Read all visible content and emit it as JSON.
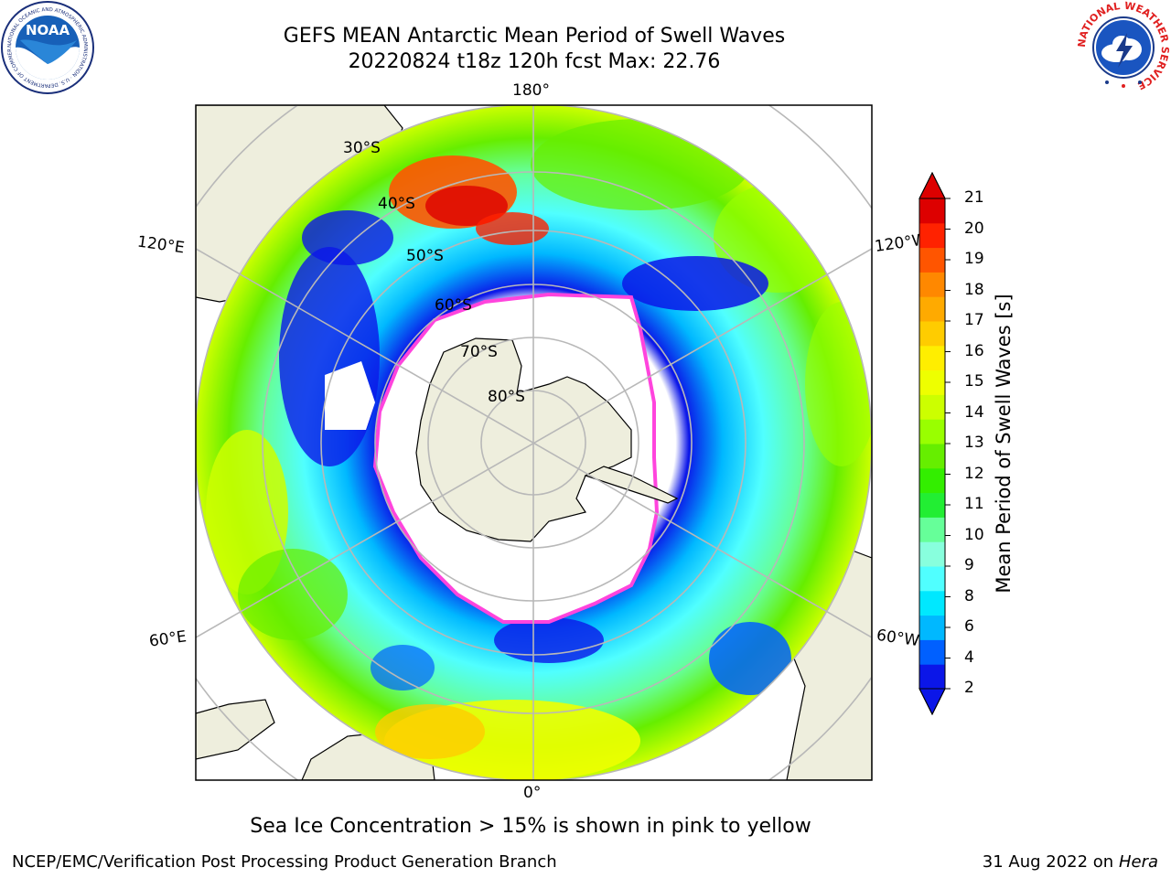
{
  "header": {
    "title_line1": "GEFS MEAN Antarctic Mean Period of Swell Waves",
    "title_line2": "20220824 t18z 120h fcst   Max: 22.76"
  },
  "logos": {
    "left": {
      "name": "noaa-logo",
      "text": "NOAA",
      "ring_text": "NATIONAL OCEANIC AND ATMOSPHERIC ADMINISTRATION · U.S. DEPARTMENT OF COMMERCE"
    },
    "right": {
      "name": "nws-logo",
      "ring_text": "NATIONAL WEATHER SERVICE"
    }
  },
  "map": {
    "projection": "south polar stereographic",
    "longitude_labels": {
      "top": "180°",
      "bottom": "0°",
      "upper_left": "120°E",
      "upper_right": "120°W",
      "lower_left": "60°E",
      "lower_right": "60°W"
    },
    "latitude_labels": [
      "30°S",
      "40°S",
      "50°S",
      "60°S",
      "70°S",
      "80°S"
    ],
    "colors": {
      "land": "#eeeedd",
      "ice_edge": "#ff44dd",
      "graticule": "#b8b8b8"
    }
  },
  "colorbar": {
    "label": "Mean Period of Swell Waves [s]",
    "ticks": [
      "21",
      "20",
      "19",
      "18",
      "17",
      "16",
      "15",
      "14",
      "13",
      "12",
      "11",
      "10",
      "9",
      "8",
      "6",
      "4",
      "2"
    ],
    "colors_bottom_to_top": [
      "#0b16e8",
      "#0060ff",
      "#00b8ff",
      "#00e8ff",
      "#50ffff",
      "#88ffdd",
      "#66ff99",
      "#22ee33",
      "#33ee00",
      "#66ee00",
      "#99ff00",
      "#ccff00",
      "#eeff00",
      "#ffee00",
      "#ffcc00",
      "#ffaa00",
      "#ff8800",
      "#ff5500",
      "#ff2200",
      "#dd0000"
    ],
    "extend_bottom_color": "#0b16e8",
    "extend_top_color": "#dd0000"
  },
  "footer": {
    "note": "Sea Ice Concentration > 15% is shown in pink to yellow",
    "credit": "NCEP/EMC/Verification Post Processing Product Generation Branch",
    "date": "31 Aug 2022 on",
    "machine": "Hera"
  }
}
